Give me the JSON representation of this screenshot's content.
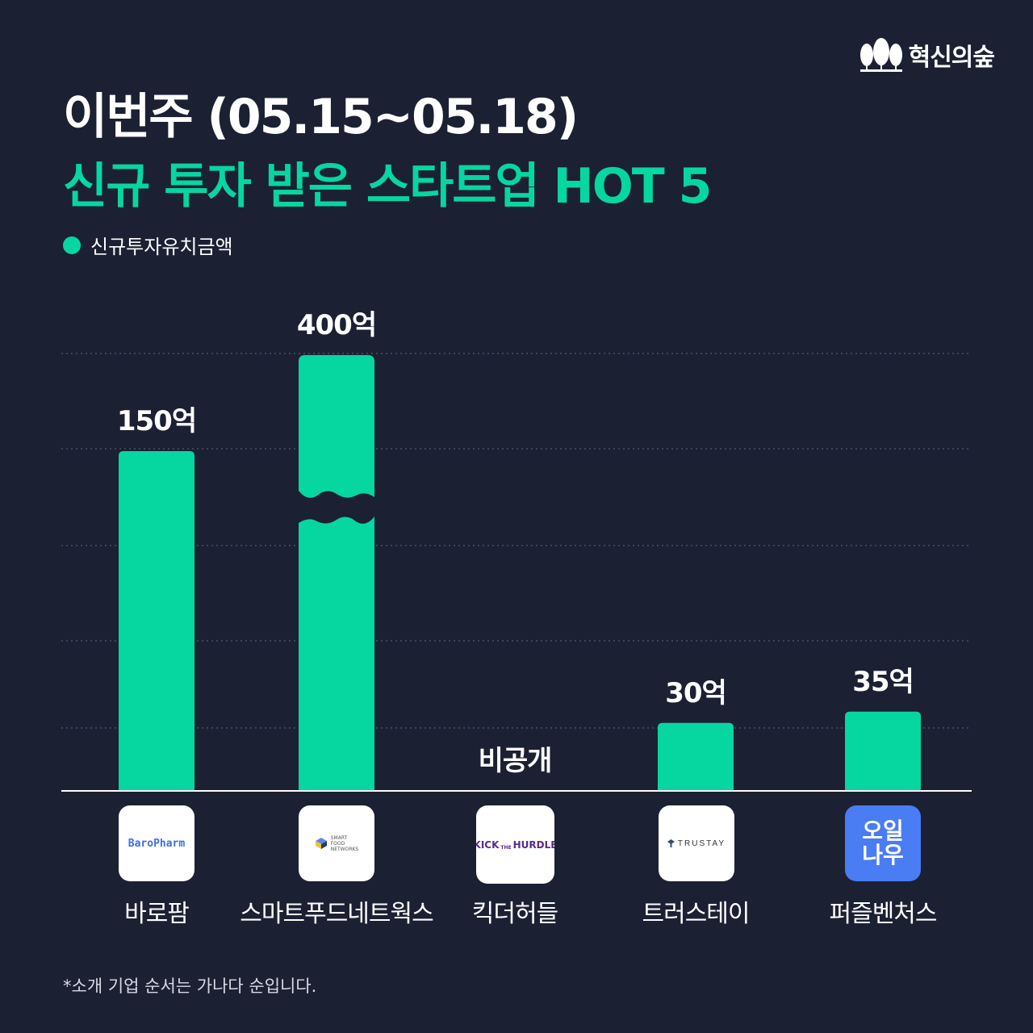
{
  "brand": {
    "name": "혁신의숲",
    "icon": "forest-icon"
  },
  "header": {
    "title_line1": "이번주 (05.15~05.18)",
    "title_line2": "신규 투자 받은 스타트업 HOT 5"
  },
  "colors": {
    "background": "#1c2033",
    "accent": "#06d6a0",
    "logo_blue": "#4a7cf4"
  },
  "chart_data": {
    "type": "bar",
    "legend": [
      "신규투자유치금액"
    ],
    "legend_position": "top-left",
    "categories": [
      "바로팜",
      "스마트푸드네트웍스",
      "킥더허들",
      "트러스테이",
      "퍼즐벤처스"
    ],
    "values": [
      150,
      400,
      null,
      30,
      35
    ],
    "data_labels": [
      "150억",
      "400억",
      "비공개",
      "30억",
      "35억"
    ],
    "unit": "억",
    "axis_break_series_index": 1,
    "grid": true
  },
  "logos": [
    {
      "name": "BaroPharm",
      "text": "BaroPharm"
    },
    {
      "name": "smart-food-networks",
      "lines": [
        "SMART",
        "FOOD",
        "NETWORKS"
      ]
    },
    {
      "name": "kick-the-hurdle",
      "text_left": "KICK",
      "text_mid": "THE",
      "text_right": "HURDLE"
    },
    {
      "name": "trustay",
      "text": "TRUSTAY"
    },
    {
      "name": "ohilnau",
      "line1": "오일",
      "line2": "나우"
    }
  ],
  "footnote": "*소개 기업 순서는 가나다 순입니다."
}
